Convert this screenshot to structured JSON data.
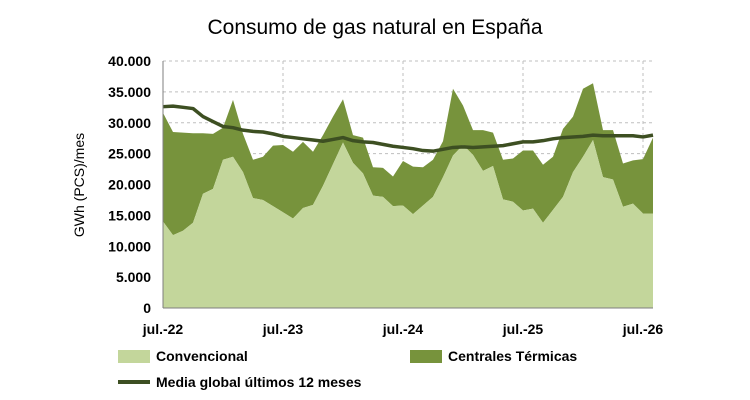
{
  "chart_data": {
    "type": "area",
    "title": "Consumo de gas natural en España",
    "ylabel": "GWh (PCS)/mes",
    "xlabel": "",
    "ylim": [
      0,
      40000
    ],
    "yticks": [
      0,
      5000,
      10000,
      15000,
      20000,
      25000,
      30000,
      35000,
      40000
    ],
    "ytick_labels": [
      "0",
      "5.000",
      "10.000",
      "15.000",
      "20.000",
      "25.000",
      "30.000",
      "35.000",
      "40.000"
    ],
    "xtick_labels": [
      "jul.-22",
      "jul.-23",
      "jul.-24",
      "jul.-25",
      "jul.-26"
    ],
    "xtick_index": [
      0,
      12,
      24,
      36,
      48
    ],
    "grid": true,
    "legend_position": "bottom",
    "colors": {
      "Convencional": "#c3d69b",
      "Centrales Térmicas": "#77933c",
      "Media global últimos 12 meses": "#3d4f22",
      "grid": "#bfbfbf"
    },
    "series": [
      {
        "name": "Convencional",
        "kind": "stacked-area",
        "values": [
          14000,
          11800,
          12500,
          13800,
          18500,
          19300,
          24000,
          24500,
          22000,
          17800,
          17500,
          16500,
          15500,
          14500,
          16200,
          16700,
          19800,
          23300,
          26800,
          23500,
          21800,
          18200,
          18000,
          16500,
          16600,
          15200,
          16600,
          18000,
          21200,
          24700,
          26400,
          24800,
          22200,
          23000,
          17600,
          17200,
          15800,
          16100,
          13800,
          15900,
          18000,
          22000,
          24500,
          27200,
          21200,
          20800,
          16400,
          16900,
          15300,
          15300
        ]
      },
      {
        "name": "Centrales Térmicas",
        "kind": "stacked-area",
        "values": [
          17600,
          16700,
          15900,
          14500,
          9800,
          8900,
          5200,
          9200,
          6200,
          6200,
          7000,
          9800,
          10900,
          10800,
          10700,
          8600,
          8200,
          7700,
          7000,
          4500,
          5800,
          4600,
          4700,
          4800,
          7200,
          7700,
          6200,
          6000,
          5800,
          10800,
          6400,
          4000,
          6600,
          5400,
          6400,
          7000,
          9700,
          9400,
          9400,
          8600,
          11000,
          9000,
          11000,
          9200,
          7600,
          8000,
          7000,
          7000,
          8800,
          12300
        ]
      },
      {
        "name": "Media global últimos 12 meses",
        "kind": "line",
        "values": [
          32600,
          32700,
          32500,
          32300,
          31000,
          30200,
          29400,
          29200,
          28800,
          28600,
          28500,
          28200,
          27800,
          27600,
          27400,
          27200,
          27000,
          27300,
          27600,
          27100,
          26900,
          26800,
          26500,
          26200,
          26000,
          25800,
          25500,
          25400,
          25700,
          26000,
          26100,
          26000,
          26100,
          26200,
          26300,
          26600,
          26900,
          26900,
          27100,
          27400,
          27600,
          27700,
          27800,
          28000,
          27900,
          27900,
          27900,
          27900,
          27700,
          28000
        ]
      }
    ]
  }
}
